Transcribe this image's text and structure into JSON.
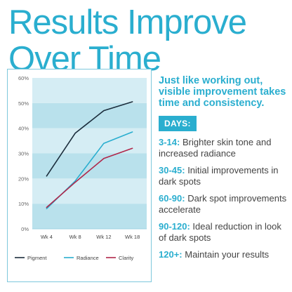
{
  "headline": {
    "line1": "Results Improve",
    "line2": "Over Time"
  },
  "chart_data": {
    "type": "line",
    "categories": [
      "Wk 4",
      "Wk 8",
      "Wk 12",
      "Wk 18"
    ],
    "ylim": [
      0,
      60
    ],
    "yticks": [
      0,
      10,
      20,
      30,
      40,
      50,
      60
    ],
    "ytick_labels": [
      "0%",
      "10%",
      "20%",
      "30%",
      "40%",
      "50%",
      "60%"
    ],
    "series": [
      {
        "name": "Pigment",
        "color": "#1b2d3c",
        "values": [
          21,
          38,
          47,
          50.5
        ]
      },
      {
        "name": "Radiance",
        "color": "#2aaecf",
        "values": [
          8,
          19,
          34,
          38.5
        ]
      },
      {
        "name": "Clarity",
        "color": "#b0274a",
        "values": [
          8.5,
          18.5,
          28,
          32
        ]
      }
    ],
    "band_colors": [
      "#b9e1ec",
      "#d5edf4"
    ],
    "grid": false,
    "legend_position": "bottom"
  },
  "intro": "Just like working out, visible improvement takes time and consistency.",
  "days_label": "DAYS:",
  "days": [
    {
      "range": "3-14:",
      "text": " Brighter skin tone and increased radiance"
    },
    {
      "range": "30-45:",
      "text": " Initial improvements in dark spots"
    },
    {
      "range": "60-90:",
      "text": " Dark spot improvements accelerate"
    },
    {
      "range": "90-120:",
      "text": " Ideal reduction in look of dark spots"
    },
    {
      "range": "120+:",
      "text": " Maintain your results"
    }
  ]
}
